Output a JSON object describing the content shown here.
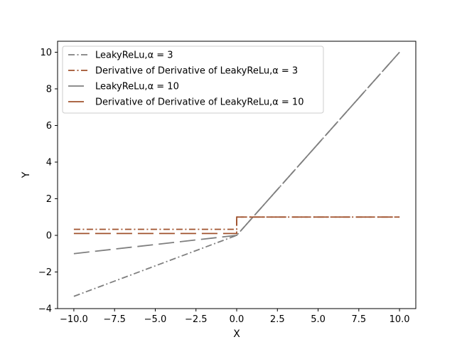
{
  "chart_data": {
    "type": "line",
    "title": "",
    "xlabel": "X",
    "ylabel": "Y",
    "xlim": [
      -11,
      11
    ],
    "ylim": [
      -4,
      10.6
    ],
    "xticks": [
      -10,
      -7.5,
      -5,
      -2.5,
      0,
      2.5,
      5,
      7.5,
      10
    ],
    "xtick_labels": [
      "−10.0",
      "−7.5",
      "−5.0",
      "−2.5",
      "0.0",
      "2.5",
      "5.0",
      "7.5",
      "10.0"
    ],
    "yticks": [
      -4,
      -2,
      0,
      2,
      4,
      6,
      8,
      10
    ],
    "ytick_labels": [
      "−4",
      "−2",
      "0",
      "2",
      "4",
      "6",
      "8",
      "10"
    ],
    "grid": false,
    "legend_position": "top-left",
    "series": [
      {
        "name": "LeakyReLu,α = 3",
        "color": "#7f7f7f",
        "dash": "dashdot",
        "x": [
          -10,
          0,
          10
        ],
        "y": [
          -3.33,
          0,
          10
        ]
      },
      {
        "name": "Derivative of Derivative of LeakyReLu,α = 3",
        "color": "#a0522d",
        "dash": "dashdot",
        "x": [
          -10,
          0,
          0,
          10
        ],
        "y": [
          0.33,
          0.33,
          1,
          1
        ]
      },
      {
        "name": "LeakyReLu,α = 10",
        "color": "#7f7f7f",
        "dash": "dashed",
        "x": [
          -10,
          0,
          10
        ],
        "y": [
          -1,
          0,
          10
        ]
      },
      {
        "name": "Derivative of Derivative of LeakyReLu,α = 10",
        "color": "#a0522d",
        "dash": "dashed",
        "x": [
          -10,
          0,
          0,
          10
        ],
        "y": [
          0.1,
          0.1,
          1,
          1
        ]
      }
    ]
  }
}
